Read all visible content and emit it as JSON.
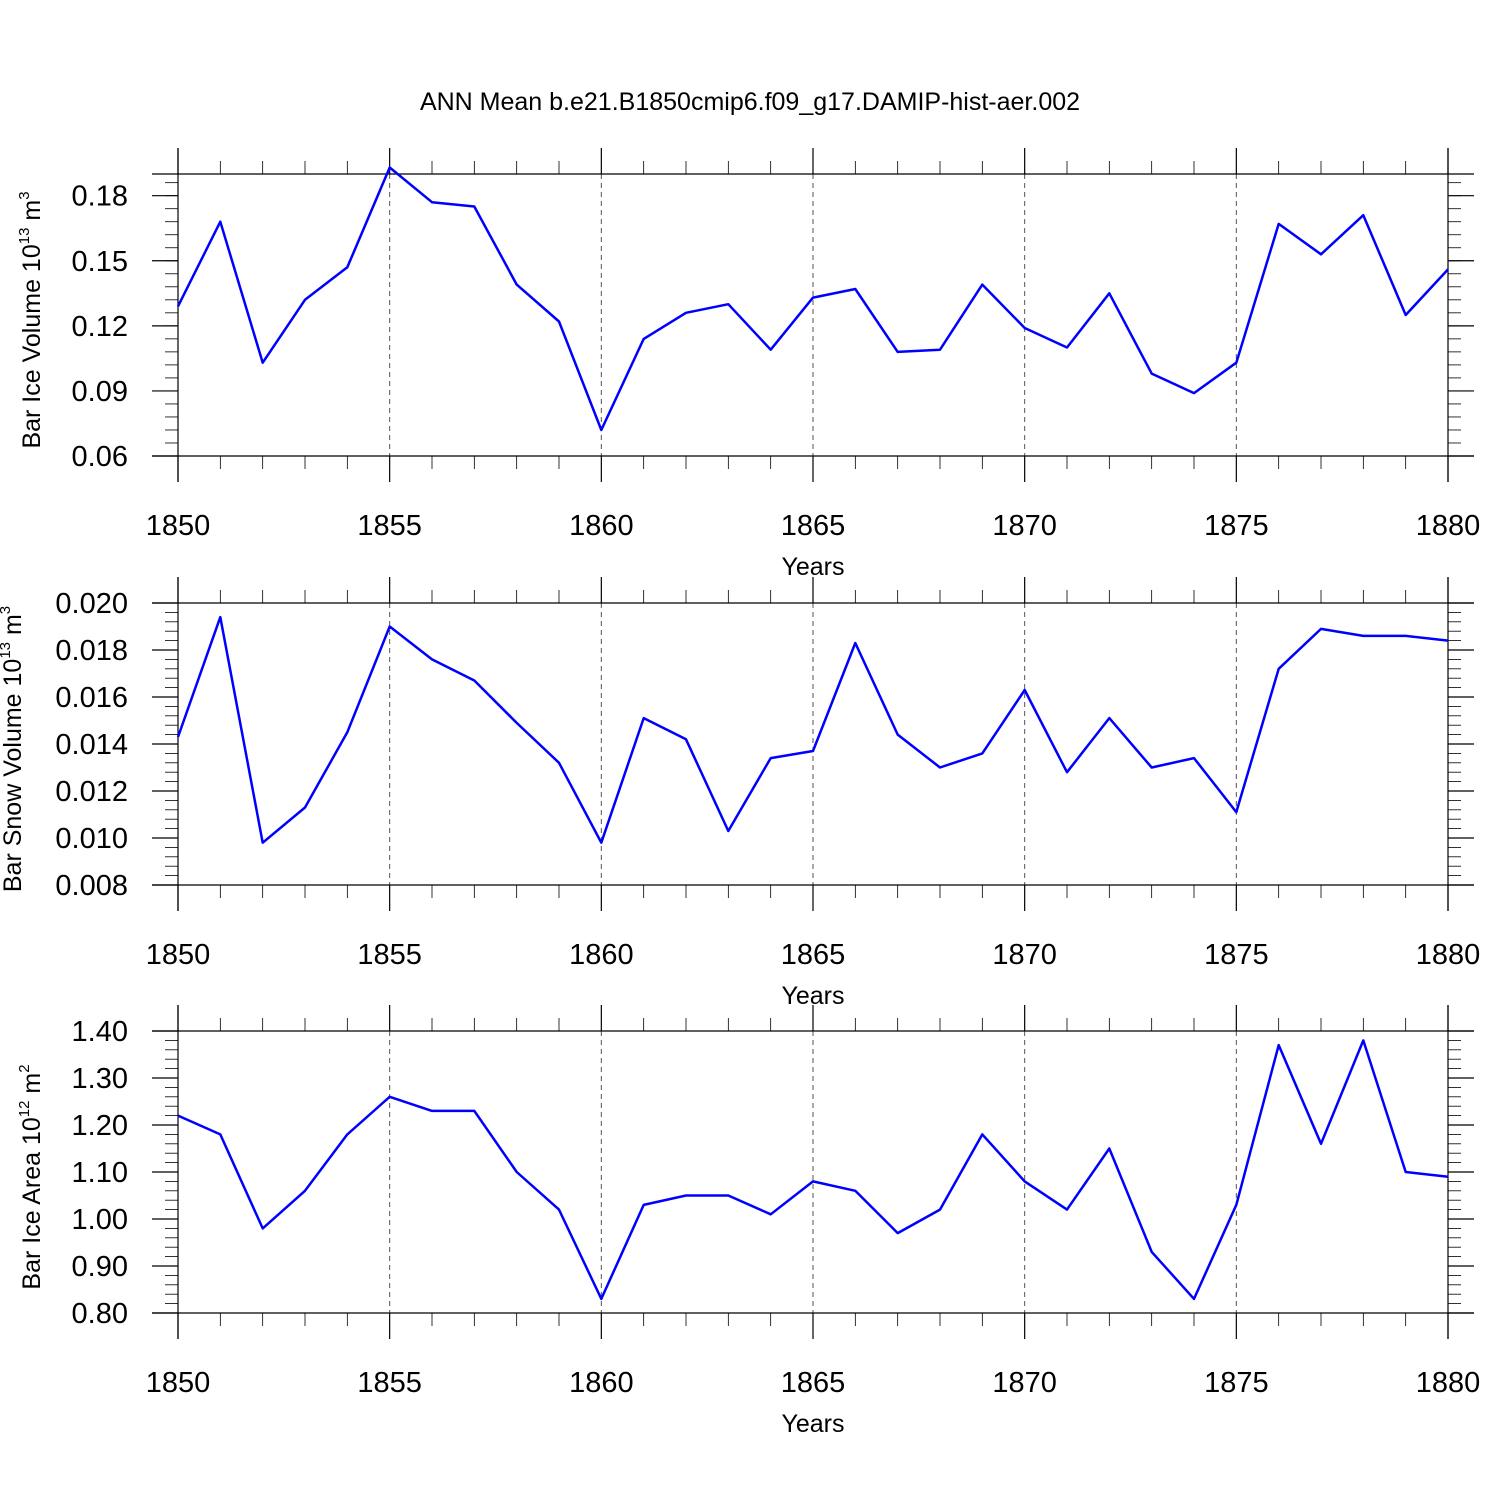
{
  "figure": {
    "title": "ANN Mean b.e21.B1850cmip6.f09_g17.DAMIP-hist-aer.002"
  },
  "chart_data": [
    {
      "type": "line",
      "ylabel": {
        "main": "Bar Ice Volume 10",
        "exp": "13",
        "unit": " m",
        "unit_exp": "3"
      },
      "xlabel": "Years",
      "xlim": [
        1850,
        1880
      ],
      "ylim": [
        0.06,
        0.19
      ],
      "y_major_ticks": [
        0.06,
        0.09,
        0.12,
        0.15,
        0.18
      ],
      "y_tick_labels": [
        "0.06",
        "0.09",
        "0.12",
        "0.15",
        "0.18"
      ],
      "y_minor_step": 0.006,
      "x_major_ticks": [
        1850,
        1855,
        1860,
        1865,
        1870,
        1875,
        1880
      ],
      "x_tick_labels": [
        "1850",
        "1855",
        "1860",
        "1865",
        "1870",
        "1875",
        "1880"
      ],
      "grid": "vertical dashed at major x ticks",
      "line_color": "#0000ff",
      "x": [
        1850,
        1851,
        1852,
        1853,
        1854,
        1855,
        1856,
        1857,
        1858,
        1859,
        1860,
        1861,
        1862,
        1863,
        1864,
        1865,
        1866,
        1867,
        1868,
        1869,
        1870,
        1871,
        1872,
        1873,
        1874,
        1875,
        1876,
        1877,
        1878,
        1879,
        1880
      ],
      "series": [
        {
          "values": [
            0.129,
            0.168,
            0.103,
            0.132,
            0.147,
            0.193,
            0.177,
            0.175,
            0.139,
            0.122,
            0.072,
            0.114,
            0.126,
            0.13,
            0.109,
            0.133,
            0.137,
            0.108,
            0.109,
            0.139,
            0.119,
            0.11,
            0.135,
            0.098,
            0.089,
            0.103,
            0.167,
            0.153,
            0.171,
            0.125,
            0.146
          ]
        }
      ]
    },
    {
      "type": "line",
      "ylabel": {
        "main": "Bar Snow Volume 10",
        "exp": "13",
        "unit": " m",
        "unit_exp": "3"
      },
      "xlabel": "Years",
      "xlim": [
        1850,
        1880
      ],
      "ylim": [
        0.008,
        0.02
      ],
      "y_major_ticks": [
        0.008,
        0.01,
        0.012,
        0.014,
        0.016,
        0.018,
        0.02
      ],
      "y_tick_labels": [
        "0.008",
        "0.010",
        "0.012",
        "0.014",
        "0.016",
        "0.018",
        "0.020"
      ],
      "y_minor_step": 0.0004,
      "x_major_ticks": [
        1850,
        1855,
        1860,
        1865,
        1870,
        1875,
        1880
      ],
      "x_tick_labels": [
        "1850",
        "1855",
        "1860",
        "1865",
        "1870",
        "1875",
        "1880"
      ],
      "grid": "vertical dashed at major x ticks",
      "line_color": "#0000ff",
      "x": [
        1850,
        1851,
        1852,
        1853,
        1854,
        1855,
        1856,
        1857,
        1858,
        1859,
        1860,
        1861,
        1862,
        1863,
        1864,
        1865,
        1866,
        1867,
        1868,
        1869,
        1870,
        1871,
        1872,
        1873,
        1874,
        1875,
        1876,
        1877,
        1878,
        1879,
        1880
      ],
      "series": [
        {
          "values": [
            0.0143,
            0.0194,
            0.0098,
            0.0113,
            0.0145,
            0.019,
            0.0176,
            0.0167,
            0.0149,
            0.0132,
            0.0098,
            0.0151,
            0.0142,
            0.0103,
            0.0134,
            0.0137,
            0.0183,
            0.0144,
            0.013,
            0.0136,
            0.0163,
            0.0128,
            0.0151,
            0.013,
            0.0134,
            0.0111,
            0.0172,
            0.0189,
            0.0186,
            0.0186,
            0.0184
          ]
        }
      ]
    },
    {
      "type": "line",
      "ylabel": {
        "main": "Bar Ice Area 10",
        "exp": "12",
        "unit": " m",
        "unit_exp": "2"
      },
      "xlabel": "Years",
      "xlim": [
        1850,
        1880
      ],
      "ylim": [
        0.8,
        1.4
      ],
      "y_major_ticks": [
        0.8,
        0.9,
        1.0,
        1.1,
        1.2,
        1.3,
        1.4
      ],
      "y_tick_labels": [
        "0.80",
        "0.90",
        "1.00",
        "1.10",
        "1.20",
        "1.30",
        "1.40"
      ],
      "y_minor_step": 0.02,
      "x_major_ticks": [
        1850,
        1855,
        1860,
        1865,
        1870,
        1875,
        1880
      ],
      "x_tick_labels": [
        "1850",
        "1855",
        "1860",
        "1865",
        "1870",
        "1875",
        "1880"
      ],
      "grid": "vertical dashed at major x ticks",
      "line_color": "#0000ff",
      "x": [
        1850,
        1851,
        1852,
        1853,
        1854,
        1855,
        1856,
        1857,
        1858,
        1859,
        1860,
        1861,
        1862,
        1863,
        1864,
        1865,
        1866,
        1867,
        1868,
        1869,
        1870,
        1871,
        1872,
        1873,
        1874,
        1875,
        1876,
        1877,
        1878,
        1879,
        1880
      ],
      "series": [
        {
          "values": [
            1.22,
            1.18,
            0.98,
            1.06,
            1.18,
            1.26,
            1.23,
            1.23,
            1.1,
            1.02,
            0.83,
            1.03,
            1.05,
            1.05,
            1.01,
            1.08,
            1.06,
            0.97,
            1.02,
            1.18,
            1.08,
            1.02,
            1.15,
            0.93,
            0.83,
            1.03,
            1.37,
            1.16,
            1.38,
            1.1,
            1.09
          ]
        }
      ]
    }
  ]
}
